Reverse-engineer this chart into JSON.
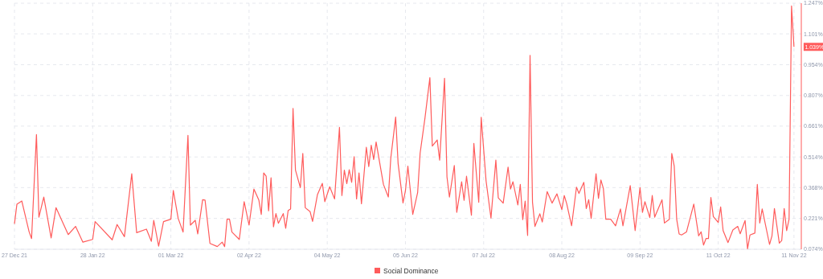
{
  "chart_data": {
    "type": "line",
    "legend": "bottom",
    "grid": true,
    "xlim": [
      "2021-12-27",
      "2022-11-14"
    ],
    "xticks": [
      {
        "value": "2021-12-27",
        "label": "27 Dec 21"
      },
      {
        "value": "2022-01-28",
        "label": "28 Jan 22"
      },
      {
        "value": "2022-03-01",
        "label": "01 Mar 22"
      },
      {
        "value": "2022-04-02",
        "label": "02 Apr 22"
      },
      {
        "value": "2022-05-04",
        "label": "04 May 22"
      },
      {
        "value": "2022-06-05",
        "label": "05 Jun 22"
      },
      {
        "value": "2022-07-07",
        "label": "07 Jul 22"
      },
      {
        "value": "2022-08-08",
        "label": "08 Aug 22"
      },
      {
        "value": "2022-09-09",
        "label": "09 Sep 22"
      },
      {
        "value": "2022-10-11",
        "label": "11 Oct 22"
      },
      {
        "value": "2022-11-11",
        "label": "11 Nov 22"
      }
    ],
    "ylim": [
      0.074,
      1.247
    ],
    "yticks": [
      {
        "value": 0.074,
        "label": "0.074%"
      },
      {
        "value": 0.221,
        "label": "0.221%"
      },
      {
        "value": 0.368,
        "label": "0.368%"
      },
      {
        "value": 0.514,
        "label": "0.514%"
      },
      {
        "value": 0.661,
        "label": "0.661%"
      },
      {
        "value": 0.807,
        "label": "0.807%"
      },
      {
        "value": 0.954,
        "label": "0.954%"
      },
      {
        "value": 1.101,
        "label": "1.101%"
      },
      {
        "value": 1.247,
        "label": "1.247%"
      }
    ],
    "annotations": [
      {
        "text": "1.039%",
        "x": "2022-11-11",
        "y": 1.039
      }
    ],
    "series": [
      {
        "name": "Social Dominance",
        "color": "#ff5b5b",
        "x": [
          "2021-12-27",
          "2021-12-28",
          "2021-12-30",
          "2022-01-02",
          "2022-01-03",
          "2022-01-05",
          "2022-01-06",
          "2022-01-08",
          "2022-01-11",
          "2022-01-13",
          "2022-01-18",
          "2022-01-21",
          "2022-01-24",
          "2022-01-28",
          "2022-01-29",
          "2022-02-05",
          "2022-02-07",
          "2022-02-10",
          "2022-02-13",
          "2022-02-15",
          "2022-02-19",
          "2022-02-21",
          "2022-02-22",
          "2022-02-24",
          "2022-02-26",
          "2022-03-01",
          "2022-03-02",
          "2022-03-04",
          "2022-03-06",
          "2022-03-08",
          "2022-03-09",
          "2022-03-11",
          "2022-03-12",
          "2022-03-14",
          "2022-03-15",
          "2022-03-17",
          "2022-03-20",
          "2022-03-22",
          "2022-03-23",
          "2022-03-24",
          "2022-03-25",
          "2022-03-26",
          "2022-03-29",
          "2022-03-31",
          "2022-04-02",
          "2022-04-04",
          "2022-04-06",
          "2022-04-07",
          "2022-04-08",
          "2022-04-09",
          "2022-04-10",
          "2022-04-11",
          "2022-04-12",
          "2022-04-13",
          "2022-04-14",
          "2022-04-16",
          "2022-04-17",
          "2022-04-18",
          "2022-04-19",
          "2022-04-20",
          "2022-04-21",
          "2022-04-23",
          "2022-04-24",
          "2022-04-25",
          "2022-04-27",
          "2022-04-28",
          "2022-04-30",
          "2022-05-02",
          "2022-05-03",
          "2022-05-05",
          "2022-05-07",
          "2022-05-09",
          "2022-05-10",
          "2022-05-11",
          "2022-05-12",
          "2022-05-13",
          "2022-05-14",
          "2022-05-15",
          "2022-05-16",
          "2022-05-17",
          "2022-05-18",
          "2022-05-20",
          "2022-05-21",
          "2022-05-22",
          "2022-05-23",
          "2022-05-24",
          "2022-05-27",
          "2022-05-29",
          "2022-05-30",
          "2022-06-01",
          "2022-06-02",
          "2022-06-04",
          "2022-06-05",
          "2022-06-06",
          "2022-06-08",
          "2022-06-10",
          "2022-06-11",
          "2022-06-13",
          "2022-06-15",
          "2022-06-16",
          "2022-06-18",
          "2022-06-19",
          "2022-06-21",
          "2022-06-22",
          "2022-06-23",
          "2022-06-25",
          "2022-06-26",
          "2022-06-28",
          "2022-06-29",
          "2022-06-30",
          "2022-07-02",
          "2022-07-03",
          "2022-07-05",
          "2022-07-06",
          "2022-07-08",
          "2022-07-10",
          "2022-07-12",
          "2022-07-13",
          "2022-07-15",
          "2022-07-17",
          "2022-07-18",
          "2022-07-19",
          "2022-07-21",
          "2022-07-22",
          "2022-07-23",
          "2022-07-24",
          "2022-07-25",
          "2022-07-26",
          "2022-07-27",
          "2022-07-28",
          "2022-07-30",
          "2022-07-31",
          "2022-08-02",
          "2022-08-04",
          "2022-08-06",
          "2022-08-08",
          "2022-08-09",
          "2022-08-10",
          "2022-08-12",
          "2022-08-14",
          "2022-08-15",
          "2022-08-17",
          "2022-08-18",
          "2022-08-19",
          "2022-08-20",
          "2022-08-22",
          "2022-08-23",
          "2022-08-24",
          "2022-08-25",
          "2022-08-26",
          "2022-08-28",
          "2022-08-30",
          "2022-09-01",
          "2022-09-02",
          "2022-09-05",
          "2022-09-07",
          "2022-09-09",
          "2022-09-10",
          "2022-09-11",
          "2022-09-13",
          "2022-09-14",
          "2022-09-15",
          "2022-09-18",
          "2022-09-19",
          "2022-09-21",
          "2022-09-22",
          "2022-09-23",
          "2022-09-24",
          "2022-09-25",
          "2022-09-26",
          "2022-09-28",
          "2022-10-01",
          "2022-10-03",
          "2022-10-04",
          "2022-10-05",
          "2022-10-06",
          "2022-10-07",
          "2022-10-08",
          "2022-10-09",
          "2022-10-11",
          "2022-10-12",
          "2022-10-13",
          "2022-10-15",
          "2022-10-17",
          "2022-10-19",
          "2022-10-20",
          "2022-10-22",
          "2022-10-23",
          "2022-10-24",
          "2022-10-26",
          "2022-10-27",
          "2022-10-28",
          "2022-10-29",
          "2022-11-01",
          "2022-11-02",
          "2022-11-03",
          "2022-11-05",
          "2022-11-06",
          "2022-11-07",
          "2022-11-08",
          "2022-11-09",
          "2022-11-10",
          "2022-11-11"
        ],
        "values": [
          0.195,
          0.289,
          0.304,
          0.157,
          0.125,
          0.621,
          0.227,
          0.323,
          0.128,
          0.272,
          0.144,
          0.183,
          0.108,
          0.121,
          0.206,
          0.119,
          0.192,
          0.134,
          0.434,
          0.153,
          0.17,
          0.112,
          0.212,
          0.089,
          0.206,
          0.217,
          0.354,
          0.221,
          0.156,
          0.617,
          0.189,
          0.212,
          0.147,
          0.31,
          0.308,
          0.102,
          0.087,
          0.108,
          0.087,
          0.217,
          0.217,
          0.156,
          0.121,
          0.301,
          0.189,
          0.361,
          0.309,
          0.24,
          0.438,
          0.422,
          0.257,
          0.415,
          0.181,
          0.244,
          0.198,
          0.244,
          0.174,
          0.259,
          0.266,
          0.745,
          0.451,
          0.368,
          0.531,
          0.272,
          0.253,
          0.207,
          0.335,
          0.388,
          0.301,
          0.372,
          0.314,
          0.655,
          0.33,
          0.451,
          0.387,
          0.453,
          0.393,
          0.515,
          0.314,
          0.438,
          0.291,
          0.56,
          0.468,
          0.57,
          0.502,
          0.585,
          0.383,
          0.323,
          0.508,
          0.704,
          0.483,
          0.295,
          0.353,
          0.47,
          0.24,
          0.345,
          0.531,
          0.7,
          0.892,
          0.566,
          0.595,
          0.499,
          0.889,
          0.419,
          0.323,
          0.473,
          0.25,
          0.396,
          0.307,
          0.422,
          0.236,
          0.579,
          0.298,
          0.703,
          0.4,
          0.223,
          0.499,
          0.319,
          0.294,
          0.466,
          0.361,
          0.396,
          0.285,
          0.383,
          0.215,
          0.304,
          0.14,
          0.998,
          0.298,
          0.183,
          0.243,
          0.204,
          0.349,
          0.294,
          0.338,
          0.263,
          0.33,
          0.291,
          0.186,
          0.37,
          0.34,
          0.393,
          0.268,
          0.31,
          0.221,
          0.434,
          0.317,
          0.404,
          0.364,
          0.217,
          0.217,
          0.186,
          0.266,
          0.186,
          0.377,
          0.163,
          0.368,
          0.25,
          0.301,
          0.225,
          0.33,
          0.227,
          0.31,
          0.199,
          0.217,
          0.531,
          0.47,
          0.217,
          0.147,
          0.142,
          0.156,
          0.289,
          0.138,
          0.157,
          0.094,
          0.125,
          0.125,
          0.321,
          0.23,
          0.202,
          0.276,
          0.163,
          0.106,
          0.166,
          0.183,
          0.148,
          0.211,
          0.076,
          0.142,
          0.151,
          0.383,
          0.199,
          0.266,
          0.097,
          0.138,
          0.268,
          0.103,
          0.116,
          0.268,
          0.163,
          0.217,
          1.234,
          1.039
        ]
      }
    ]
  }
}
